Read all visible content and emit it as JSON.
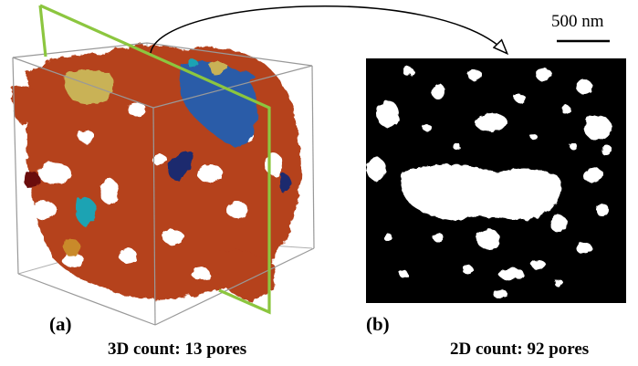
{
  "panels": {
    "a": {
      "label": "(a)",
      "count_text": "3D count: 13 pores"
    },
    "b": {
      "label": "(b)",
      "count_text": "2D count: 92 pores"
    }
  },
  "scale_bar": {
    "text": "500 nm"
  },
  "colors": {
    "pore_network": "#b5421c",
    "pore_blue": "#2a5ba8",
    "pore_yellow": "#c9b256",
    "pore_cyan": "#1fa3b3",
    "pore_navy": "#1e2a6e",
    "pore_darkred": "#6a1010",
    "slice_plane": "#8cc63f",
    "cube_edges": "#999999",
    "slice_background": "#000000",
    "slice_pores": "#ffffff"
  }
}
